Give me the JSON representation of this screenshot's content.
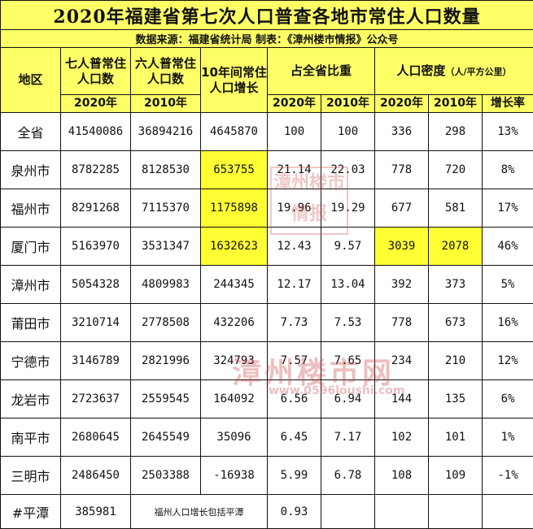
{
  "title": "2020年福建省第七次人口普查各地市常住人口数量",
  "subtitle": "数据来源：福建省统计局 制表：《漳州楼市情报》公众号",
  "headers": {
    "region": "地区",
    "pop7": "七人普常住人口数",
    "pop6": "六人普常住人口数",
    "growth": "10年间常住人口增长",
    "share": "占全省比重",
    "density": "人口密度",
    "density_unit": "（人/平方公里）",
    "y2020": "2020年",
    "y2010": "2010年",
    "rate": "增长率"
  },
  "rows": [
    {
      "region": "全省",
      "pop2020": "41540086",
      "pop2010": "36894216",
      "growth": "4645870",
      "share2020": "100",
      "share2010": "100",
      "den2020": "336",
      "den2010": "298",
      "rate": "13%"
    },
    {
      "region": "泉州市",
      "pop2020": "8782285",
      "pop2010": "8128530",
      "growth": "653755",
      "share2020": "21.14",
      "share2010": "22.03",
      "den2020": "778",
      "den2010": "720",
      "rate": "8%"
    },
    {
      "region": "福州市",
      "pop2020": "8291268",
      "pop2010": "7115370",
      "growth": "1175898",
      "share2020": "19.96",
      "share2010": "19.29",
      "den2020": "677",
      "den2010": "581",
      "rate": "17%"
    },
    {
      "region": "厦门市",
      "pop2020": "5163970",
      "pop2010": "3531347",
      "growth": "1632623",
      "share2020": "12.43",
      "share2010": "9.57",
      "den2020": "3039",
      "den2010": "2078",
      "rate": "46%"
    },
    {
      "region": "漳州市",
      "pop2020": "5054328",
      "pop2010": "4809983",
      "growth": "244345",
      "share2020": "12.17",
      "share2010": "13.04",
      "den2020": "392",
      "den2010": "373",
      "rate": "5%"
    },
    {
      "region": "莆田市",
      "pop2020": "3210714",
      "pop2010": "2778508",
      "growth": "432206",
      "share2020": "7.73",
      "share2010": "7.53",
      "den2020": "778",
      "den2010": "673",
      "rate": "16%"
    },
    {
      "region": "宁德市",
      "pop2020": "3146789",
      "pop2010": "2821996",
      "growth": "324793",
      "share2020": "7.57",
      "share2010": "7.65",
      "den2020": "234",
      "den2010": "210",
      "rate": "12%"
    },
    {
      "region": "龙岩市",
      "pop2020": "2723637",
      "pop2010": "2559545",
      "growth": "164092",
      "share2020": "6.56",
      "share2010": "6.94",
      "den2020": "144",
      "den2010": "135",
      "rate": "6%"
    },
    {
      "region": "南平市",
      "pop2020": "2680645",
      "pop2010": "2645549",
      "growth": "35096",
      "share2020": "6.45",
      "share2010": "7.17",
      "den2020": "102",
      "den2010": "101",
      "rate": "1%"
    },
    {
      "region": "三明市",
      "pop2020": "2486450",
      "pop2010": "2503388",
      "growth": "-16938",
      "share2020": "5.99",
      "share2010": "6.78",
      "den2020": "108",
      "den2010": "109",
      "rate": "-1%"
    }
  ],
  "footer_row": {
    "region": "#平潭",
    "pop2020": "385981",
    "note": "福州人口增长包括平潭",
    "share2020": "0.93"
  },
  "highlight_color": "#ffff33",
  "header_color": "#ffff66",
  "watermark": {
    "main": "漳州楼市网",
    "url": "www.0596loushi.com",
    "stamp": "漳州楼市情报"
  }
}
